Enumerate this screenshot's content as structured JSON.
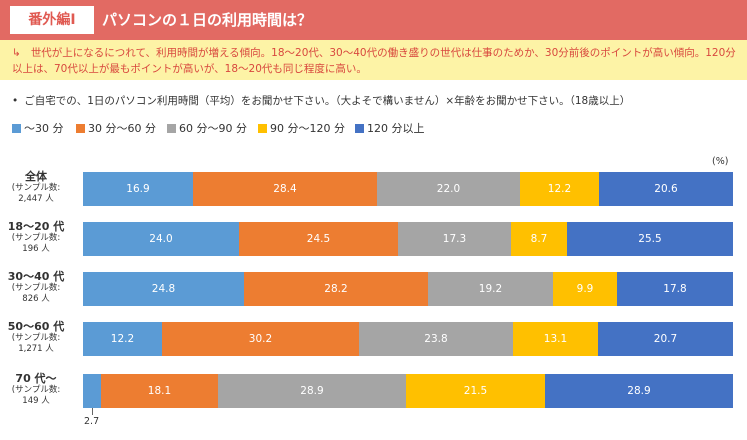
{
  "header": {
    "badge": "番外編Ⅰ",
    "title": "パソコンの１日の利用時間は？"
  },
  "note": {
    "icon": "return-arrow-icon",
    "arrow": "↳",
    "text": "世代が上になるにつれて、利用時間が増える傾向。18〜20代、30〜40代の働き盛りの世代は仕事のためか、30分前後のポイントが高い傾向。120分以上は、70代以上が最もポイントが高いが、18〜20代も同じ程度に高い。"
  },
  "question": {
    "bullet": "•",
    "text": "ご自宅での、1日のパソコン利用時間（平均）をお聞かせ下さい。（大よそで構いません）×年齢をお聞かせ下さい。（18歳以上）"
  },
  "colors": {
    "header": "#e26a63",
    "note_bg": "#fdf3a6",
    "note_text": "#d8483e"
  },
  "chart_data": {
    "type": "bar",
    "orientation": "horizontal",
    "stacked": true,
    "percent_stacked": true,
    "unit": "(%)",
    "xlim": [
      0,
      100
    ],
    "legend_position": "top-left",
    "categories": [
      {
        "name": "全体",
        "sub1": "(サンプル数:",
        "sub2": "2,447 人"
      },
      {
        "name": "18〜20 代",
        "sub1": "(サンプル数:",
        "sub2": "196 人"
      },
      {
        "name": "30〜40 代",
        "sub1": "(サンプル数:",
        "sub2": "826 人"
      },
      {
        "name": "50〜60 代",
        "sub1": "(サンプル数:",
        "sub2": "1,271 人"
      },
      {
        "name": "70 代〜",
        "sub1": "(サンプル数:",
        "sub2": "149 人"
      }
    ],
    "series": [
      {
        "name": "〜30 分",
        "color": "#5b9bd5",
        "values": [
          16.9,
          24.0,
          24.8,
          12.2,
          2.7
        ]
      },
      {
        "name": "30 分〜60 分",
        "color": "#ed7d31",
        "values": [
          28.4,
          24.5,
          28.2,
          30.2,
          18.1
        ]
      },
      {
        "name": "60 分〜90 分",
        "color": "#a5a5a5",
        "values": [
          22.0,
          17.3,
          19.2,
          23.8,
          28.9
        ]
      },
      {
        "name": "90 分〜120 分",
        "color": "#ffc000",
        "values": [
          12.2,
          8.7,
          9.9,
          13.1,
          21.5
        ]
      },
      {
        "name": "120 分以上",
        "color": "#4472c4",
        "values": [
          20.6,
          25.5,
          17.8,
          20.7,
          28.9
        ]
      }
    ]
  }
}
